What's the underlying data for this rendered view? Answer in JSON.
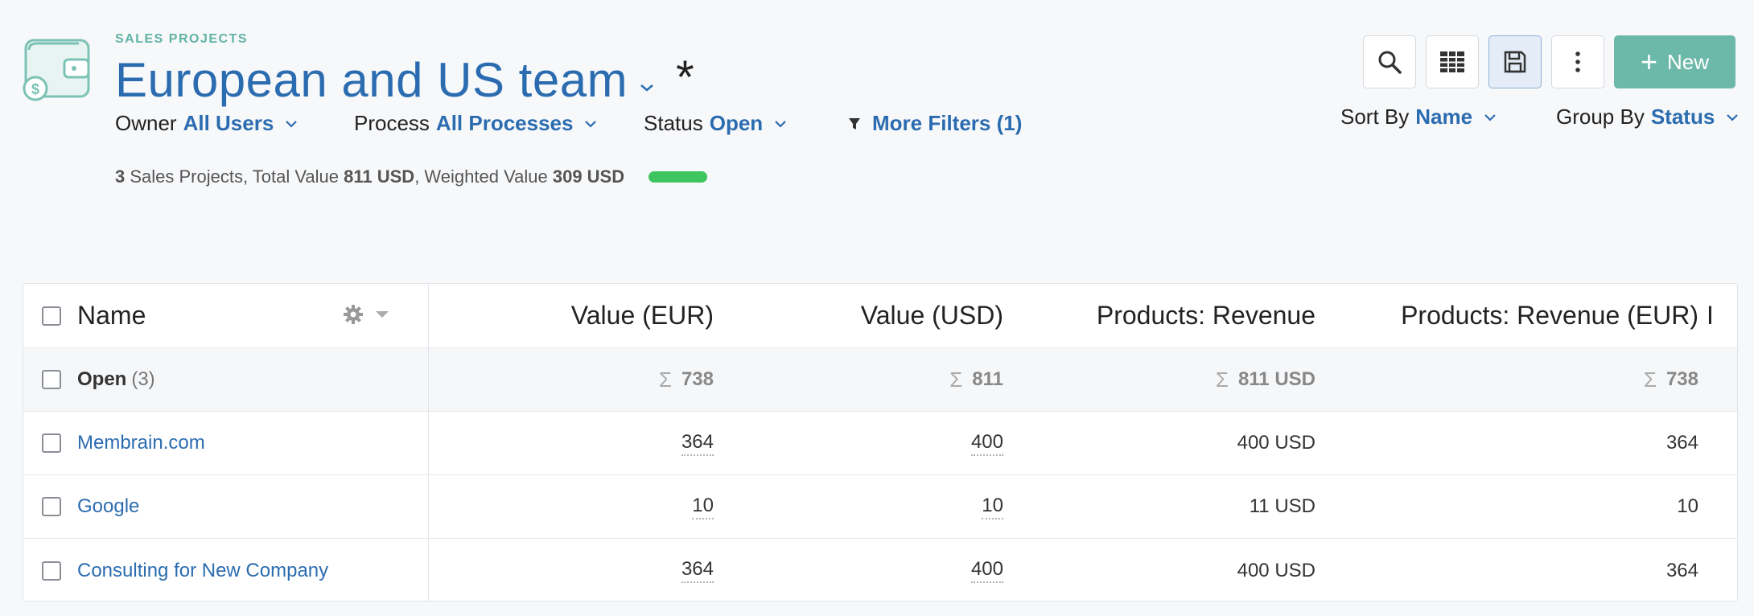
{
  "header": {
    "eyebrow": "SALES PROJECTS",
    "title": "European and US team",
    "unsaved_marker": "*"
  },
  "filters": [
    {
      "label": "Owner",
      "value": "All Users"
    },
    {
      "label": "Process",
      "value": "All Processes"
    },
    {
      "label": "Status",
      "value": "Open"
    }
  ],
  "more_filters": "More Filters (1)",
  "summary": {
    "count": "3",
    "text1": " Sales Projects, Total Value ",
    "total": "811 USD",
    "text2": ", Weighted Value ",
    "weighted": "309 USD",
    "progress_fraction": 1.0
  },
  "toolbar": {
    "new_label": "New",
    "icons": [
      "search-icon",
      "grid-icon",
      "save-icon",
      "more-vertical-icon"
    ]
  },
  "sorting": {
    "sort_label": "Sort By",
    "sort_value": "Name",
    "group_label": "Group By",
    "group_value": "Status"
  },
  "table": {
    "columns": [
      "Name",
      "Value (EUR)",
      "Value (USD)",
      "Products: Revenue",
      "Products: Revenue (EUR)",
      "I"
    ],
    "group": {
      "label": "Open",
      "count": "(3)",
      "sums": [
        "738",
        "811",
        "811 USD",
        "738"
      ]
    },
    "rows": [
      {
        "name": "Membrain.com",
        "values": [
          "364",
          "400",
          "400 USD",
          "364"
        ]
      },
      {
        "name": "Google",
        "values": [
          "10",
          "10",
          "11 USD",
          "10"
        ]
      },
      {
        "name": "Consulting for New Company",
        "values": [
          "364",
          "400",
          "400 USD",
          "364"
        ]
      }
    ]
  },
  "colors": {
    "accent": "#2b6cb0",
    "brand_teal": "#6cb8a9",
    "progress_green": "#3fc55f"
  }
}
